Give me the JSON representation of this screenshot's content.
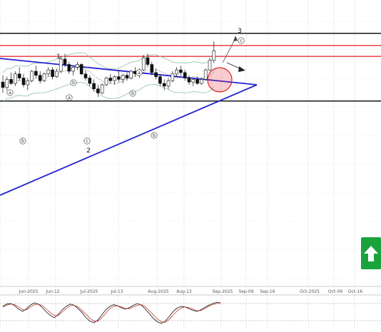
{
  "chart_data": {
    "type": "candlestick",
    "title": "",
    "xlabel": "",
    "ylabel": "",
    "grid": true,
    "x_ticks": [
      "Jun-2025",
      "Jun-12",
      "Jul-2025",
      "Jul-13",
      "Aug-2025",
      "Aug-13",
      "Sep-2025",
      "Sep-09",
      "Sep-16",
      "Oct-2025",
      "Oct-09",
      "Oct-16"
    ],
    "price_range": [
      0,
      100
    ],
    "candles": [
      {
        "o": 52,
        "h": 57,
        "l": 44,
        "c": 48
      },
      {
        "o": 48,
        "h": 56,
        "l": 46,
        "c": 54
      },
      {
        "o": 54,
        "h": 59,
        "l": 50,
        "c": 51
      },
      {
        "o": 51,
        "h": 60,
        "l": 49,
        "c": 58
      },
      {
        "o": 58,
        "h": 63,
        "l": 53,
        "c": 55
      },
      {
        "o": 55,
        "h": 58,
        "l": 48,
        "c": 50
      },
      {
        "o": 50,
        "h": 55,
        "l": 46,
        "c": 53
      },
      {
        "o": 53,
        "h": 61,
        "l": 52,
        "c": 60
      },
      {
        "o": 60,
        "h": 64,
        "l": 55,
        "c": 57
      },
      {
        "o": 57,
        "h": 60,
        "l": 51,
        "c": 53
      },
      {
        "o": 53,
        "h": 59,
        "l": 52,
        "c": 58
      },
      {
        "o": 58,
        "h": 63,
        "l": 56,
        "c": 61
      },
      {
        "o": 61,
        "h": 63,
        "l": 54,
        "c": 56
      },
      {
        "o": 56,
        "h": 62,
        "l": 55,
        "c": 60
      },
      {
        "o": 60,
        "h": 71,
        "l": 59,
        "c": 69
      },
      {
        "o": 69,
        "h": 73,
        "l": 63,
        "c": 65
      },
      {
        "o": 65,
        "h": 67,
        "l": 58,
        "c": 60
      },
      {
        "o": 60,
        "h": 64,
        "l": 57,
        "c": 63
      },
      {
        "o": 63,
        "h": 67,
        "l": 61,
        "c": 65
      },
      {
        "o": 65,
        "h": 66,
        "l": 57,
        "c": 58
      },
      {
        "o": 58,
        "h": 61,
        "l": 53,
        "c": 55
      },
      {
        "o": 55,
        "h": 57,
        "l": 49,
        "c": 51
      },
      {
        "o": 51,
        "h": 54,
        "l": 45,
        "c": 47
      },
      {
        "o": 47,
        "h": 50,
        "l": 41,
        "c": 44
      },
      {
        "o": 44,
        "h": 51,
        "l": 43,
        "c": 50
      },
      {
        "o": 50,
        "h": 56,
        "l": 49,
        "c": 55
      },
      {
        "o": 55,
        "h": 58,
        "l": 51,
        "c": 53
      },
      {
        "o": 53,
        "h": 57,
        "l": 50,
        "c": 56
      },
      {
        "o": 56,
        "h": 60,
        "l": 52,
        "c": 54
      },
      {
        "o": 54,
        "h": 58,
        "l": 51,
        "c": 57
      },
      {
        "o": 57,
        "h": 59,
        "l": 53,
        "c": 55
      },
      {
        "o": 55,
        "h": 61,
        "l": 54,
        "c": 60
      },
      {
        "o": 60,
        "h": 63,
        "l": 56,
        "c": 58
      },
      {
        "o": 58,
        "h": 62,
        "l": 55,
        "c": 61
      },
      {
        "o": 61,
        "h": 72,
        "l": 60,
        "c": 70
      },
      {
        "o": 70,
        "h": 73,
        "l": 63,
        "c": 65
      },
      {
        "o": 65,
        "h": 67,
        "l": 57,
        "c": 59
      },
      {
        "o": 59,
        "h": 62,
        "l": 54,
        "c": 56
      },
      {
        "o": 56,
        "h": 58,
        "l": 49,
        "c": 51
      },
      {
        "o": 51,
        "h": 54,
        "l": 46,
        "c": 49
      },
      {
        "o": 49,
        "h": 55,
        "l": 47,
        "c": 53
      },
      {
        "o": 53,
        "h": 60,
        "l": 52,
        "c": 58
      },
      {
        "o": 58,
        "h": 63,
        "l": 56,
        "c": 61
      },
      {
        "o": 61,
        "h": 64,
        "l": 57,
        "c": 59
      },
      {
        "o": 59,
        "h": 61,
        "l": 53,
        "c": 55
      },
      {
        "o": 55,
        "h": 57,
        "l": 50,
        "c": 52
      },
      {
        "o": 52,
        "h": 55,
        "l": 49,
        "c": 54
      },
      {
        "o": 54,
        "h": 56,
        "l": 50,
        "c": 51
      },
      {
        "o": 51,
        "h": 55,
        "l": 50,
        "c": 54
      },
      {
        "o": 54,
        "h": 62,
        "l": 53,
        "c": 61
      },
      {
        "o": 61,
        "h": 70,
        "l": 60,
        "c": 68
      },
      {
        "o": 68,
        "h": 82,
        "l": 66,
        "c": 75
      }
    ],
    "levels": [
      {
        "name": "black-top",
        "value": 88,
        "color": "#000000"
      },
      {
        "name": "red-upper",
        "value": 79,
        "color": "#e31b23"
      },
      {
        "name": "red-lower",
        "value": 71,
        "color": "#e31b23"
      },
      {
        "name": "black-bottom",
        "value": 38,
        "color": "#000000"
      }
    ],
    "wave_labels": [
      "1",
      "2",
      "3"
    ],
    "circle_labels": [
      "a",
      "b",
      "c",
      "b",
      "a",
      "b",
      "a",
      "b",
      "c"
    ],
    "oscillator": {
      "values": [
        70,
        78,
        80,
        72,
        60,
        52,
        62,
        75,
        82,
        78,
        65,
        50,
        38,
        30,
        42,
        58,
        70,
        78,
        74,
        62,
        48,
        30,
        18,
        12,
        22,
        40,
        58,
        70,
        76,
        72,
        64,
        60,
        66,
        74,
        80,
        74,
        60,
        44,
        28,
        16,
        10,
        18,
        34,
        52,
        64,
        70,
        68,
        62,
        56,
        52,
        58,
        66,
        74,
        80,
        84,
        82
      ],
      "signal": [
        68,
        74,
        78,
        76,
        68,
        58,
        58,
        68,
        76,
        78,
        72,
        60,
        48,
        38,
        38,
        50,
        62,
        72,
        74,
        68,
        56,
        42,
        28,
        18,
        18,
        30,
        46,
        62,
        70,
        72,
        68,
        62,
        62,
        68,
        74,
        76,
        68,
        54,
        40,
        26,
        16,
        14,
        24,
        40,
        54,
        64,
        68,
        66,
        60,
        55,
        55,
        62,
        70,
        76,
        80,
        82
      ],
      "range": [
        0,
        100
      ],
      "levels": [
        80,
        20
      ]
    },
    "accent_colors": {
      "up": "#1aa33c",
      "triangle": "#2323d2",
      "band": "#8fbfa8",
      "highlight": "#e31b23"
    }
  },
  "widgets": {
    "trend_button_icon": "arrow-up-icon"
  }
}
